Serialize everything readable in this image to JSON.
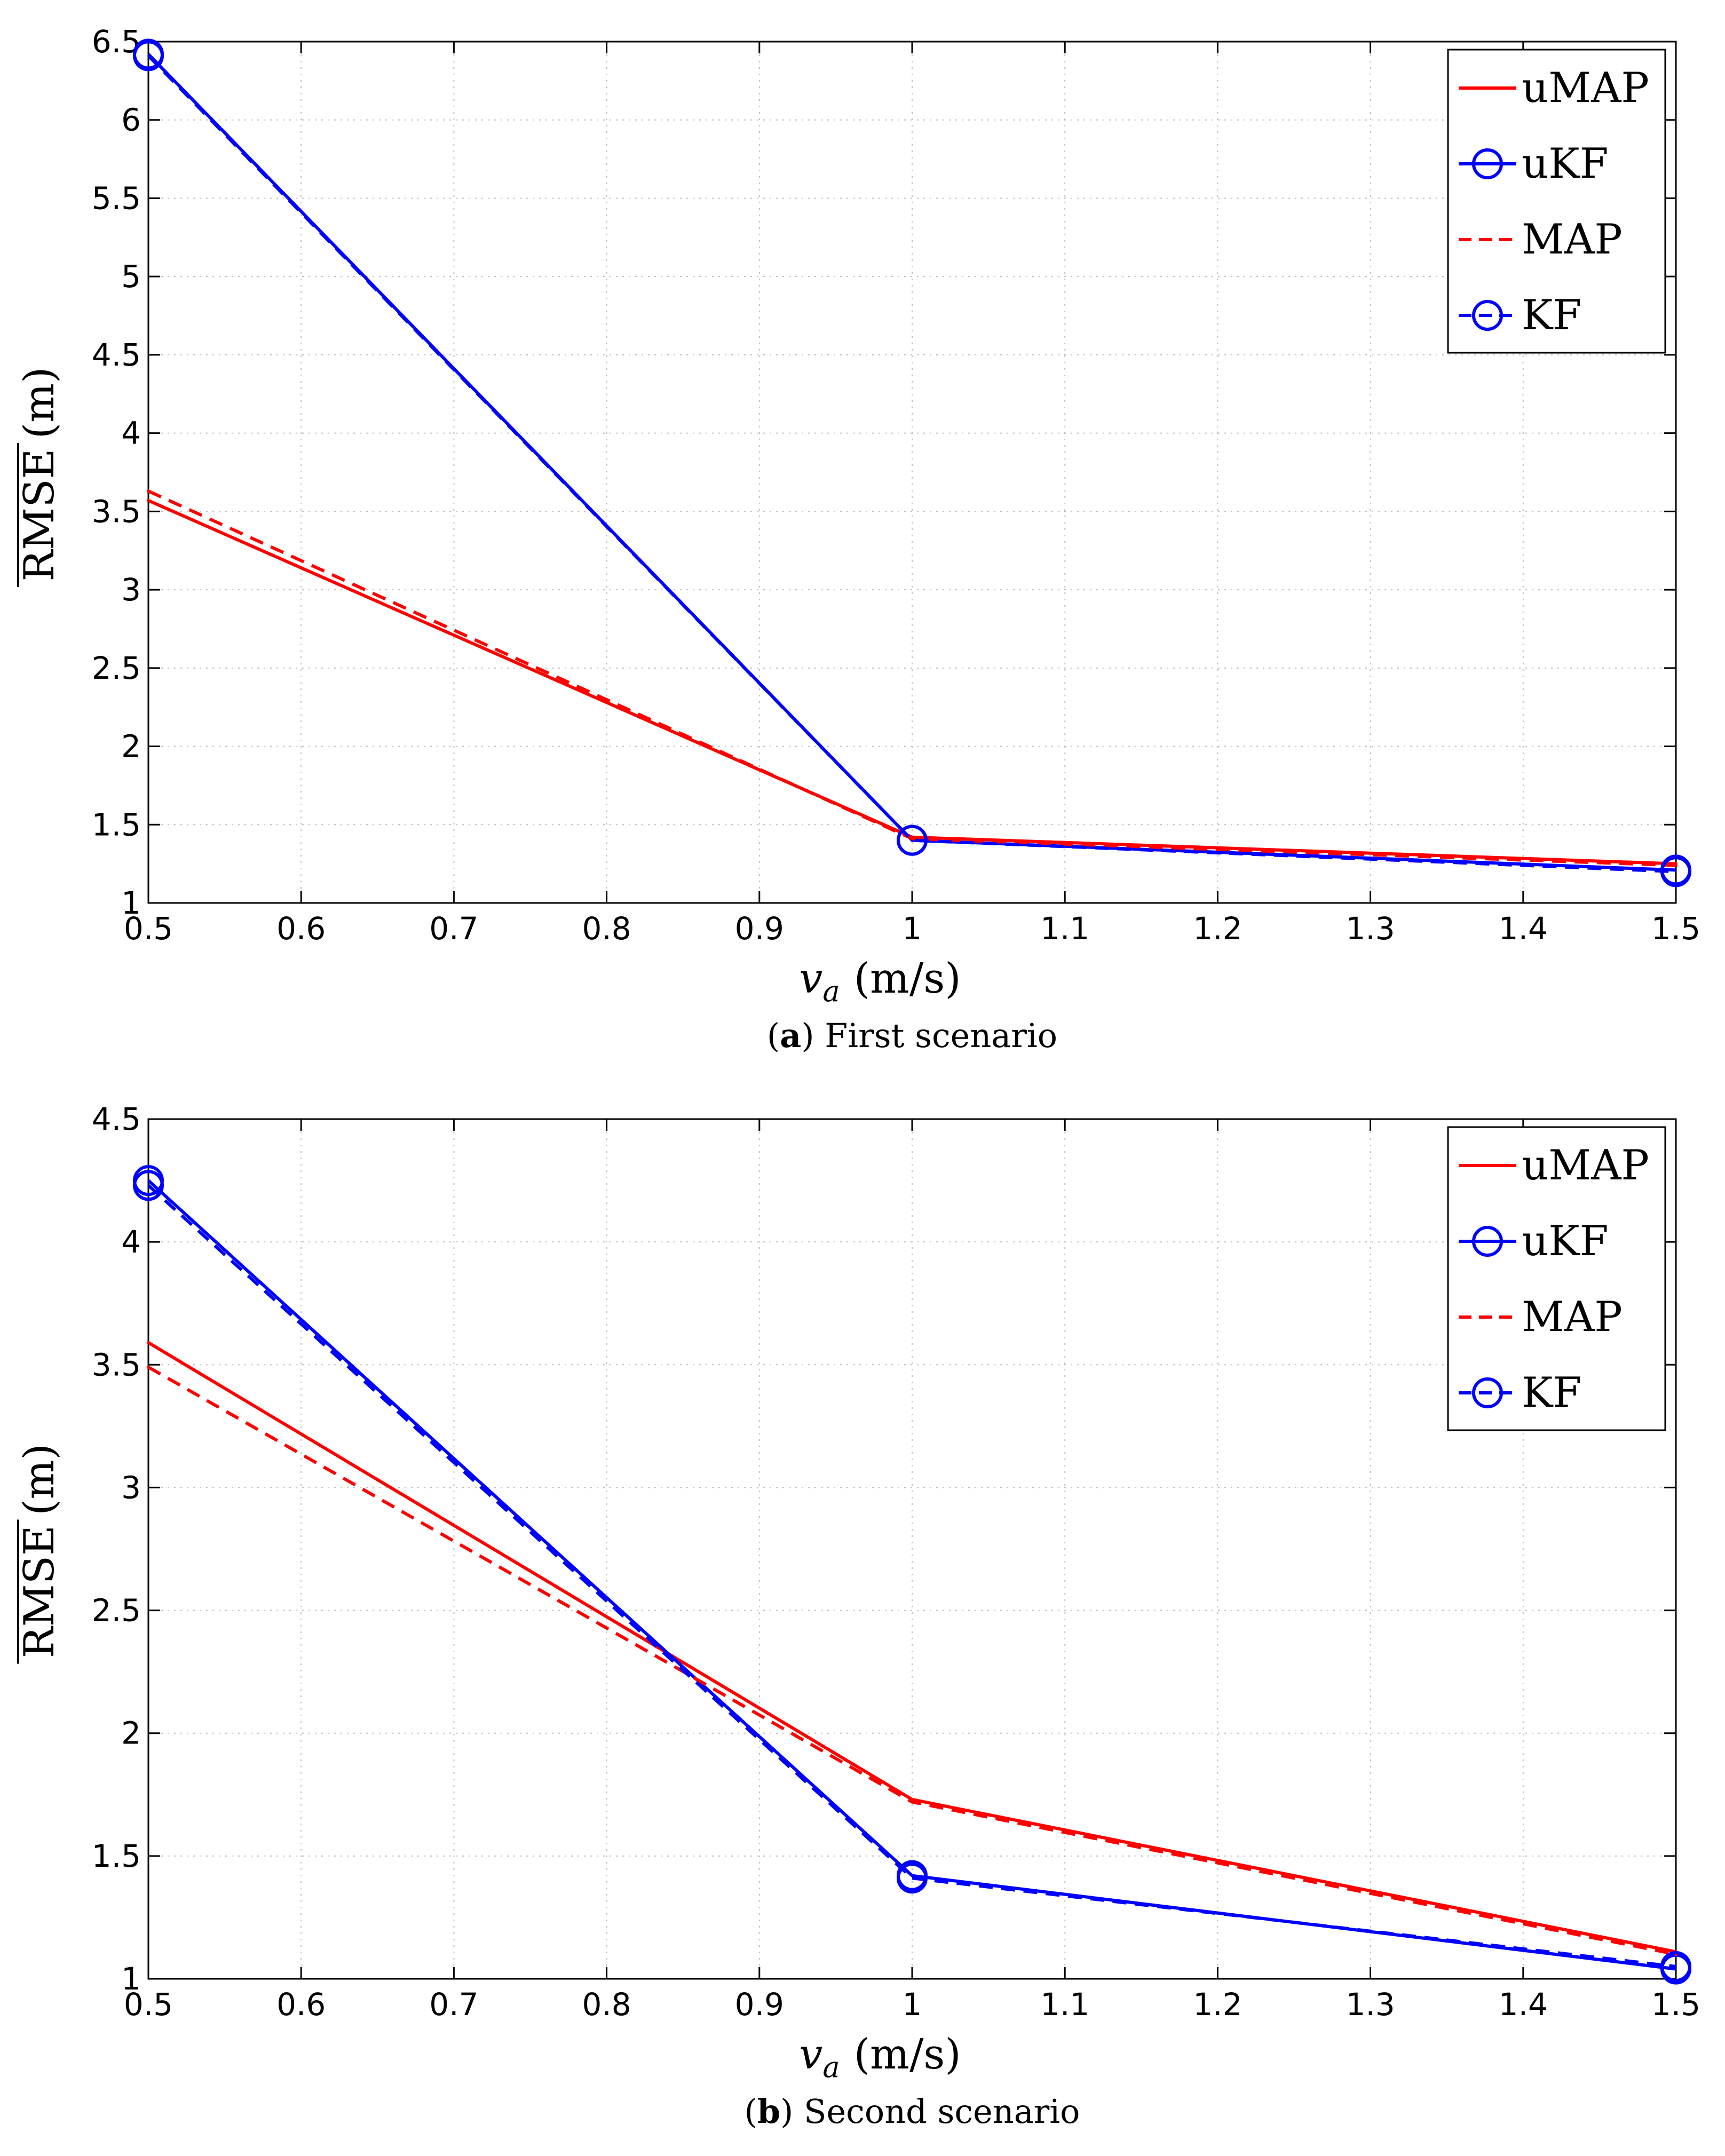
{
  "chart_data": [
    {
      "type": "line",
      "panel_label": "a",
      "caption": "First scenario",
      "xlabel": {
        "symbol": "v",
        "subscript": "a",
        "unit": "(m/s)"
      },
      "ylabel": {
        "text": "RMSE",
        "unit": "(m)"
      },
      "xlim": [
        0.5,
        1.5
      ],
      "ylim": [
        1,
        6.5
      ],
      "xticks": [
        "0.5",
        "0.6",
        "0.7",
        "0.8",
        "0.9",
        "1",
        "1.1",
        "1.2",
        "1.3",
        "1.4",
        "1.5"
      ],
      "yticks": [
        "1",
        "1.5",
        "2",
        "2.5",
        "3",
        "3.5",
        "4",
        "4.5",
        "5",
        "5.5",
        "6",
        "6.5"
      ],
      "grid": true,
      "legend_position": "top-right",
      "x": [
        0.5,
        1.0,
        1.5
      ],
      "series": [
        {
          "name": "uMAP",
          "values": [
            3.57,
            1.42,
            1.25
          ],
          "color": "#ff0000",
          "dash": "solid",
          "marker": "none"
        },
        {
          "name": "uKF",
          "values": [
            6.42,
            1.4,
            1.21
          ],
          "color": "#0000ff",
          "dash": "solid",
          "marker": "circle"
        },
        {
          "name": "MAP",
          "values": [
            3.63,
            1.41,
            1.24
          ],
          "color": "#ff0000",
          "dash": "dashed",
          "marker": "none"
        },
        {
          "name": "KF",
          "values": [
            6.41,
            1.4,
            1.2
          ],
          "color": "#0000ff",
          "dash": "dashed",
          "marker": "circle"
        }
      ]
    },
    {
      "type": "line",
      "panel_label": "b",
      "caption": "Second scenario",
      "xlabel": {
        "symbol": "v",
        "subscript": "a",
        "unit": "(m/s)"
      },
      "ylabel": {
        "text": "RMSE",
        "unit": "(m)"
      },
      "xlim": [
        0.5,
        1.5
      ],
      "ylim": [
        1,
        4.5
      ],
      "xticks": [
        "0.5",
        "0.6",
        "0.7",
        "0.8",
        "0.9",
        "1",
        "1.1",
        "1.2",
        "1.3",
        "1.4",
        "1.5"
      ],
      "yticks": [
        "1",
        "1.5",
        "2",
        "2.5",
        "3",
        "3.5",
        "4",
        "4.5"
      ],
      "grid": true,
      "legend_position": "top-right",
      "x": [
        0.5,
        1.0,
        1.5
      ],
      "series": [
        {
          "name": "uMAP",
          "values": [
            3.59,
            1.73,
            1.11
          ],
          "color": "#ff0000",
          "dash": "solid",
          "marker": "none"
        },
        {
          "name": "uKF",
          "values": [
            4.25,
            1.42,
            1.04
          ],
          "color": "#0000ff",
          "dash": "solid",
          "marker": "circle"
        },
        {
          "name": "MAP",
          "values": [
            3.49,
            1.72,
            1.1
          ],
          "color": "#ff0000",
          "dash": "dashed",
          "marker": "none"
        },
        {
          "name": "KF",
          "values": [
            4.23,
            1.41,
            1.05
          ],
          "color": "#0000ff",
          "dash": "dashed",
          "marker": "circle"
        }
      ]
    }
  ]
}
